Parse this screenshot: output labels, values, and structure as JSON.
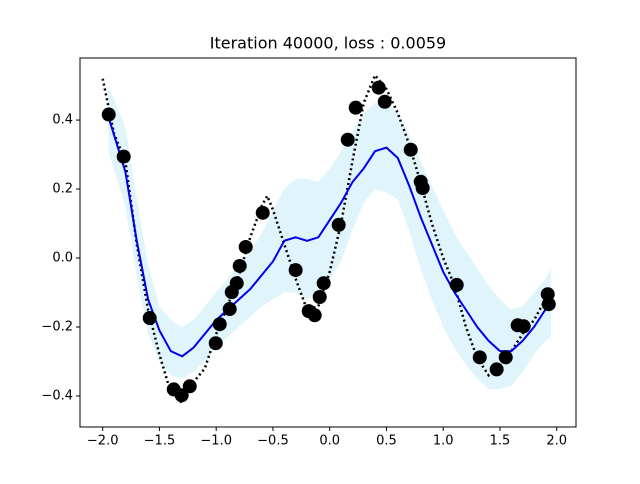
{
  "chart_data": {
    "type": "line",
    "title": "Iteration 40000, loss : 0.0059",
    "xlim": [
      -2.2,
      2.17
    ],
    "ylim": [
      -0.49,
      0.58
    ],
    "xticks": [
      {
        "value": -2.0,
        "label": "−2.0"
      },
      {
        "value": -1.5,
        "label": "−1.5"
      },
      {
        "value": -1.0,
        "label": "−1.0"
      },
      {
        "value": -0.5,
        "label": "−0.5"
      },
      {
        "value": 0.0,
        "label": "0.0"
      },
      {
        "value": 0.5,
        "label": "0.5"
      },
      {
        "value": 1.0,
        "label": "1.0"
      },
      {
        "value": 1.5,
        "label": "1.5"
      },
      {
        "value": 2.0,
        "label": "2.0"
      }
    ],
    "yticks": [
      {
        "value": -0.4,
        "label": "−0.4"
      },
      {
        "value": -0.2,
        "label": "−0.2"
      },
      {
        "value": 0.0,
        "label": "0.0"
      },
      {
        "value": 0.2,
        "label": "0.2"
      },
      {
        "value": 0.4,
        "label": "0.4"
      }
    ],
    "band": {
      "color": "#e0f4fc",
      "x": [
        -1.95,
        -1.8,
        -1.7,
        -1.6,
        -1.5,
        -1.4,
        -1.3,
        -1.2,
        -1.1,
        -1.0,
        -0.9,
        -0.8,
        -0.7,
        -0.6,
        -0.5,
        -0.4,
        -0.3,
        -0.2,
        -0.1,
        0.0,
        0.1,
        0.2,
        0.3,
        0.4,
        0.5,
        0.6,
        0.7,
        0.8,
        0.9,
        1.0,
        1.1,
        1.2,
        1.3,
        1.4,
        1.5,
        1.6,
        1.7,
        1.8,
        1.9,
        1.95
      ],
      "upper": [
        0.5,
        0.38,
        0.17,
        -0.02,
        -0.14,
        -0.18,
        -0.2,
        -0.18,
        -0.14,
        -0.1,
        -0.06,
        -0.02,
        0.02,
        0.07,
        0.14,
        0.2,
        0.23,
        0.23,
        0.22,
        0.26,
        0.31,
        0.37,
        0.42,
        0.45,
        0.45,
        0.42,
        0.36,
        0.28,
        0.21,
        0.14,
        0.07,
        0.02,
        -0.03,
        -0.08,
        -0.12,
        -0.15,
        -0.14,
        -0.1,
        -0.06,
        -0.03
      ],
      "lower": [
        0.31,
        0.15,
        -0.05,
        -0.22,
        -0.3,
        -0.34,
        -0.35,
        -0.33,
        -0.3,
        -0.26,
        -0.23,
        -0.2,
        -0.17,
        -0.14,
        -0.12,
        -0.1,
        -0.1,
        -0.12,
        -0.1,
        -0.06,
        -0.01,
        0.08,
        0.16,
        0.2,
        0.19,
        0.17,
        0.08,
        -0.03,
        -0.12,
        -0.2,
        -0.26,
        -0.31,
        -0.35,
        -0.38,
        -0.38,
        -0.37,
        -0.33,
        -0.28,
        -0.24,
        -0.23
      ]
    },
    "series": [
      {
        "style": "dotted",
        "color": "#000000",
        "x": [
          -2.0,
          -1.9,
          -1.8,
          -1.7,
          -1.6,
          -1.5,
          -1.4,
          -1.3,
          -1.2,
          -1.1,
          -1.0,
          -0.9,
          -0.8,
          -0.7,
          -0.6,
          -0.55,
          -0.5,
          -0.4,
          -0.3,
          -0.2,
          -0.1,
          0.0,
          0.1,
          0.2,
          0.3,
          0.4,
          0.5,
          0.6,
          0.7,
          0.8,
          0.9,
          1.0,
          1.1,
          1.2,
          1.3,
          1.4,
          1.5,
          1.6,
          1.7,
          1.8,
          1.9,
          2.0
        ],
        "values": [
          0.52,
          0.36,
          0.28,
          0.04,
          -0.15,
          -0.28,
          -0.39,
          -0.42,
          -0.36,
          -0.32,
          -0.22,
          -0.14,
          -0.05,
          0.06,
          0.15,
          0.18,
          0.14,
          0.04,
          -0.06,
          -0.15,
          -0.14,
          -0.04,
          0.1,
          0.28,
          0.45,
          0.53,
          0.49,
          0.42,
          0.33,
          0.22,
          0.1,
          0.0,
          -0.08,
          -0.2,
          -0.29,
          -0.34,
          -0.31,
          -0.27,
          -0.22,
          -0.18,
          -0.12,
          -0.1
        ]
      },
      {
        "style": "solid",
        "color": "#0000ee",
        "x": [
          -1.95,
          -1.8,
          -1.7,
          -1.6,
          -1.5,
          -1.4,
          -1.3,
          -1.2,
          -1.1,
          -1.0,
          -0.9,
          -0.8,
          -0.7,
          -0.6,
          -0.5,
          -0.4,
          -0.3,
          -0.2,
          -0.1,
          0.0,
          0.1,
          0.2,
          0.3,
          0.4,
          0.5,
          0.6,
          0.7,
          0.8,
          0.9,
          1.0,
          1.1,
          1.2,
          1.3,
          1.4,
          1.5,
          1.6,
          1.7,
          1.8,
          1.9,
          1.95
        ],
        "values": [
          0.41,
          0.25,
          0.05,
          -0.12,
          -0.21,
          -0.27,
          -0.285,
          -0.26,
          -0.22,
          -0.18,
          -0.15,
          -0.12,
          -0.09,
          -0.05,
          -0.01,
          0.05,
          0.06,
          0.05,
          0.06,
          0.11,
          0.16,
          0.22,
          0.26,
          0.31,
          0.32,
          0.29,
          0.21,
          0.12,
          0.04,
          -0.04,
          -0.1,
          -0.15,
          -0.2,
          -0.24,
          -0.27,
          -0.27,
          -0.24,
          -0.2,
          -0.15,
          -0.13
        ]
      },
      {
        "style": "markers",
        "color": "#000000",
        "x": [
          -1.947,
          -1.815,
          -1.586,
          -1.374,
          -1.304,
          -1.233,
          -1.004,
          -0.969,
          -0.881,
          -0.863,
          -0.819,
          -0.793,
          -0.74,
          -0.59,
          -0.3,
          -0.185,
          -0.132,
          -0.088,
          -0.053,
          0.079,
          0.159,
          0.229,
          0.432,
          0.485,
          0.714,
          0.802,
          0.819,
          1.119,
          1.322,
          1.471,
          1.551,
          1.656,
          1.709,
          1.921,
          1.93
        ],
        "values": [
          0.416,
          0.294,
          -0.174,
          -0.381,
          -0.398,
          -0.372,
          -0.247,
          -0.192,
          -0.148,
          -0.099,
          -0.073,
          -0.023,
          0.032,
          0.131,
          -0.035,
          -0.154,
          -0.166,
          -0.113,
          -0.073,
          0.096,
          0.343,
          0.436,
          0.494,
          0.453,
          0.314,
          0.221,
          0.203,
          -0.078,
          -0.288,
          -0.323,
          -0.288,
          -0.195,
          -0.198,
          -0.105,
          -0.134
        ]
      }
    ]
  }
}
